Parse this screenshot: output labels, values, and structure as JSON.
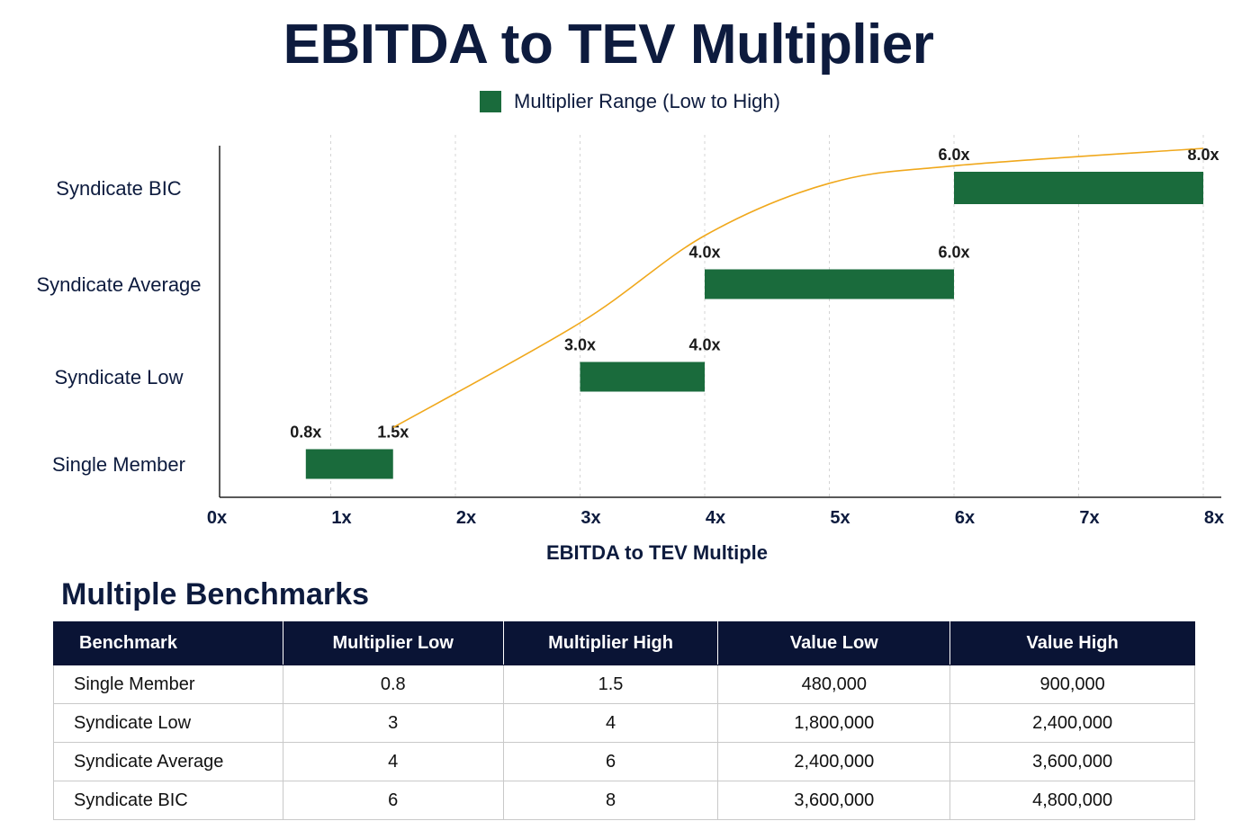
{
  "chart_data": {
    "type": "bar",
    "orientation": "horizontal-range",
    "title": "EBITDA to TEV Multiplier",
    "legend": {
      "label": "Multiplier Range (Low to High)",
      "color": "#1a6b3c",
      "position": "top-center"
    },
    "categories": [
      "Syndicate BIC",
      "Syndicate Average",
      "Syndicate Low",
      "Single Member"
    ],
    "ranges": [
      {
        "category": "Syndicate BIC",
        "low": 6.0,
        "high": 8.0,
        "low_label": "6.0x",
        "high_label": "8.0x"
      },
      {
        "category": "Syndicate Average",
        "low": 4.0,
        "high": 6.0,
        "low_label": "4.0x",
        "high_label": "6.0x"
      },
      {
        "category": "Syndicate Low",
        "low": 3.0,
        "high": 4.0,
        "low_label": "3.0x",
        "high_label": "4.0x"
      },
      {
        "category": "Single Member",
        "low": 0.8,
        "high": 1.5,
        "low_label": "0.8x",
        "high_label": "1.5x"
      }
    ],
    "trend_line": {
      "color": "#f0a81c",
      "points": [
        [
          1.5,
          0.8
        ],
        [
          3.0,
          2.0
        ],
        [
          4.0,
          3.0
        ],
        [
          5.0,
          3.6
        ],
        [
          6.0,
          3.8
        ],
        [
          8.0,
          4.0
        ]
      ]
    },
    "xlabel": "EBITDA to TEV Multiple",
    "xlim": [
      0,
      8
    ],
    "xticks": [
      "0x",
      "1x",
      "2x",
      "3x",
      "4x",
      "5x",
      "6x",
      "7x",
      "8x"
    ],
    "grid": "vertical dashed"
  },
  "benchmarks": {
    "title": "Multiple Benchmarks",
    "headers": [
      "Benchmark",
      "Multiplier Low",
      "Multiplier High",
      "Value Low",
      "Value High"
    ],
    "rows": [
      [
        "Single Member",
        "0.8",
        "1.5",
        "480,000",
        "900,000"
      ],
      [
        "Syndicate Low",
        "3",
        "4",
        "1,800,000",
        "2,400,000"
      ],
      [
        "Syndicate Average",
        "4",
        "6",
        "2,400,000",
        "3,600,000"
      ],
      [
        "Syndicate BIC",
        "6",
        "8",
        "3,600,000",
        "4,800,000"
      ]
    ]
  }
}
